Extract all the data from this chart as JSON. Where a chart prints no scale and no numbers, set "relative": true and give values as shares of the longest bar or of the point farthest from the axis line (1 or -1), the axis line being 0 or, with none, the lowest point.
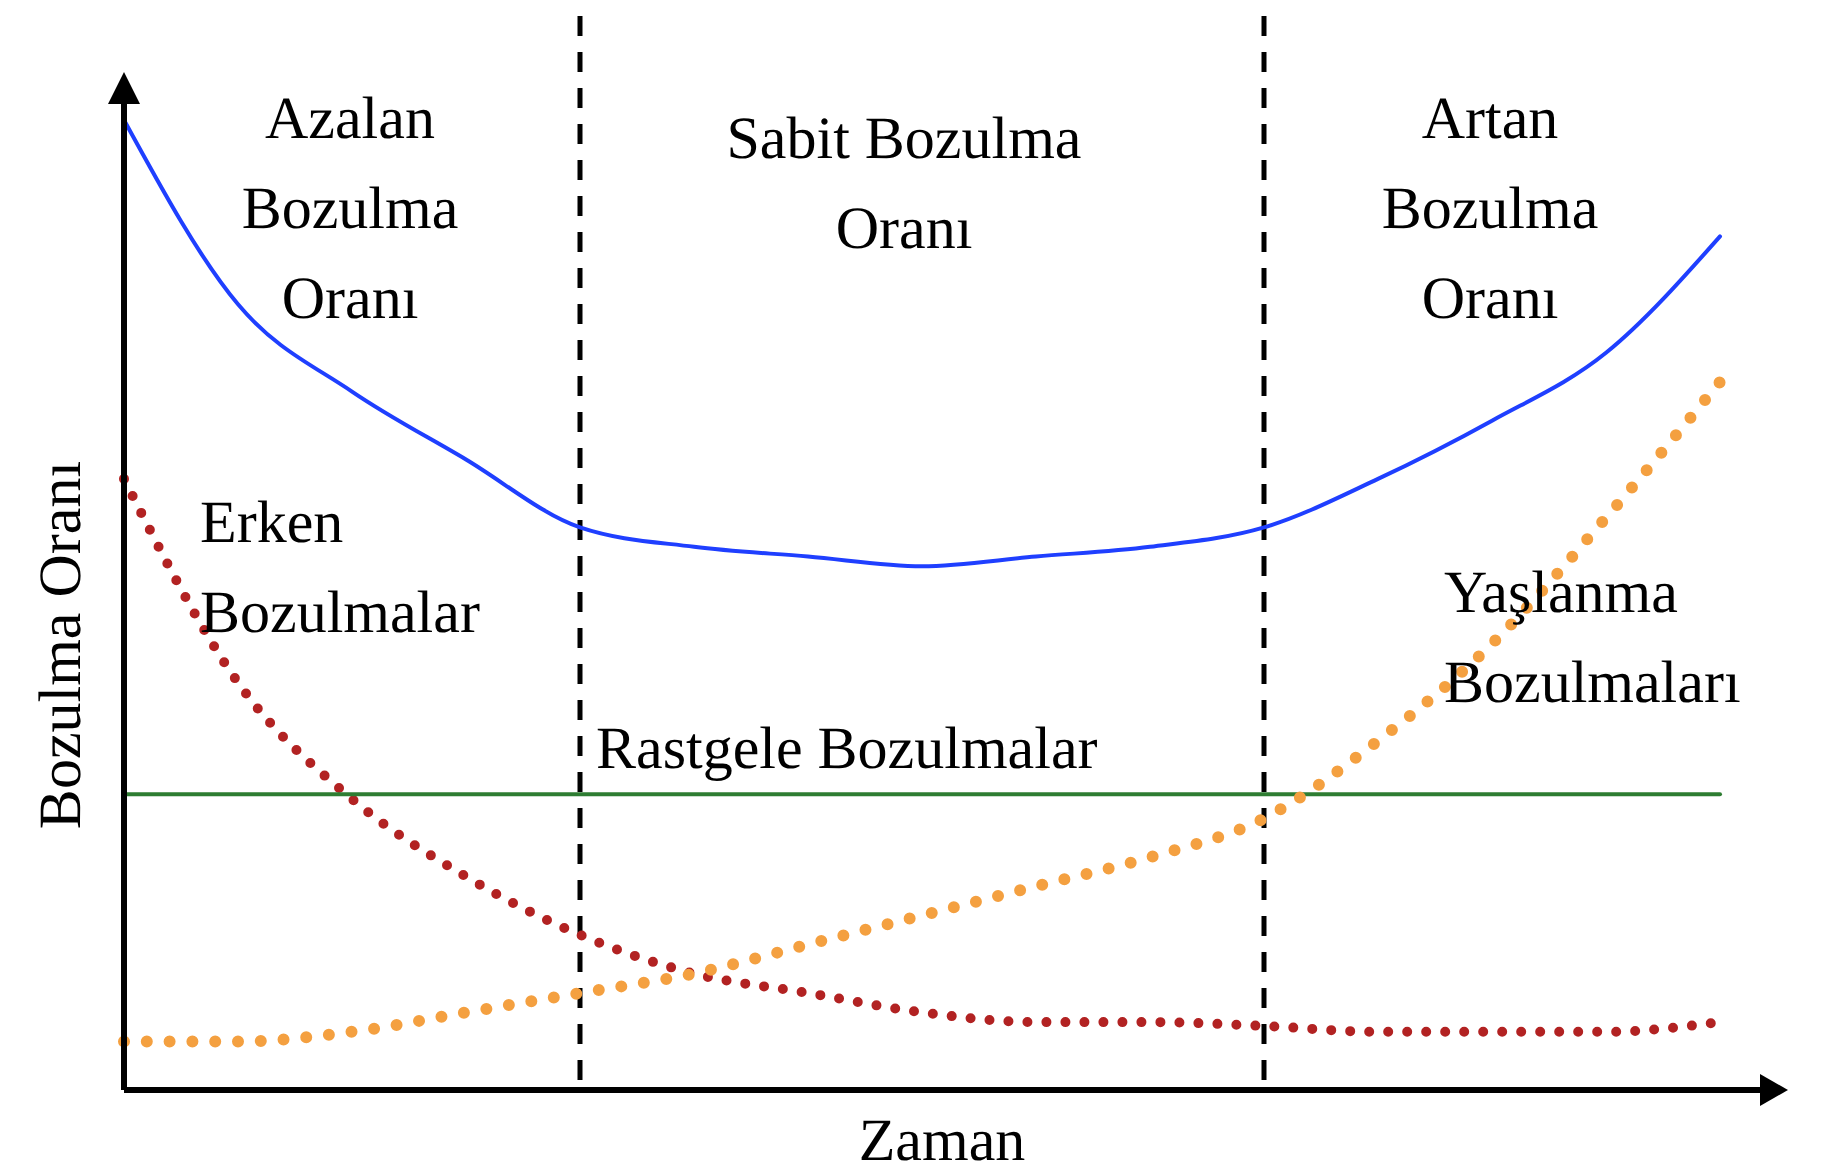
{
  "chart_data": {
    "type": "line",
    "relative": true,
    "xlabel": "Zaman",
    "ylabel": "Bozulma Oranı",
    "categories": [
      null,
      null,
      null,
      null,
      null,
      null,
      null,
      null,
      null,
      null,
      null,
      null,
      null,
      null,
      null
    ],
    "series": [
      {
        "color": "#1f3fff",
        "line_style": "solid",
        "values": [
          1.0,
          0.81,
          0.72,
          0.65,
          0.58,
          0.56,
          0.55,
          0.54,
          0.55,
          0.56,
          0.58,
          0.63,
          0.69,
          0.76,
          0.88
        ]
      },
      {
        "name": "Erken\nBozulmalar",
        "color": "#b22222",
        "line_style": "dotted",
        "values": [
          0.63,
          0.42,
          0.3,
          0.22,
          0.16,
          0.12,
          0.1,
          0.08,
          0.07,
          0.07,
          0.066,
          0.06,
          0.06,
          0.06,
          0.07
        ]
      },
      {
        "name": "Rastgele Bozulmalar",
        "color": "#2e7d32",
        "line_style": "solid",
        "values": [
          0.305,
          0.305,
          0.305,
          0.305,
          0.305,
          0.305,
          0.305,
          0.305,
          0.305,
          0.305,
          0.305,
          0.305,
          0.305,
          0.305,
          0.305
        ]
      },
      {
        "name": "Yaşlanma\nBozulmaları",
        "color": "#f4a040",
        "line_style": "dotted",
        "values": [
          0.05,
          0.05,
          0.06,
          0.08,
          0.1,
          0.12,
          0.15,
          0.18,
          0.21,
          0.24,
          0.28,
          0.36,
          0.46,
          0.59,
          0.73
        ]
      }
    ],
    "annotations": [
      "Azalan\nBozulma\nOranı",
      "Sabit Bozulma\nOranı",
      "Artan\nBozulma\nOranı"
    ],
    "grid": false,
    "marker": "none"
  }
}
